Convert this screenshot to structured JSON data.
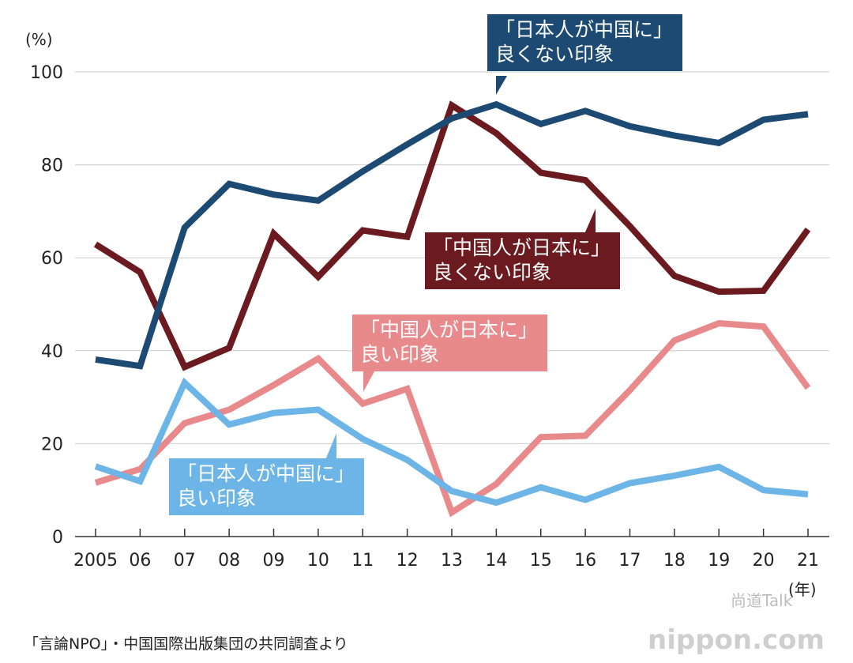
{
  "chart_data": {
    "type": "line",
    "y_unit": "(%)",
    "x_unit": "(年)",
    "ylim": [
      0,
      100
    ],
    "yticks": [
      0,
      20,
      40,
      60,
      80,
      100
    ],
    "grid": true,
    "categories": [
      "2005",
      "06",
      "07",
      "08",
      "09",
      "10",
      "11",
      "12",
      "13",
      "14",
      "15",
      "16",
      "17",
      "18",
      "19",
      "20",
      "21"
    ],
    "series": [
      {
        "name": "「日本人が中国に」\n良くない印象",
        "color": "#1c4a72",
        "values": [
          38.1,
          36.7,
          66.5,
          75.9,
          73.6,
          72.3,
          78.6,
          84.4,
          90.0,
          93.0,
          88.8,
          91.6,
          88.3,
          86.3,
          84.7,
          89.7,
          90.9
        ]
      },
      {
        "name": "「中国人が日本に」\n良くない印象",
        "color": "#6b1b1f",
        "values": [
          62.9,
          56.9,
          36.5,
          40.6,
          65.2,
          55.9,
          65.9,
          64.5,
          92.8,
          86.8,
          78.3,
          76.7,
          66.8,
          56.1,
          52.7,
          52.9,
          66.1
        ]
      },
      {
        "name": "「中国人が日本に」\n良い印象",
        "color": "#e8898b",
        "values": [
          11.6,
          14.5,
          24.4,
          27.3,
          32.6,
          38.3,
          28.6,
          31.8,
          5.2,
          11.3,
          21.4,
          21.7,
          31.5,
          42.2,
          45.9,
          45.2,
          32.0
        ]
      },
      {
        "name": "「日本人が中国に」\n良い印象",
        "color": "#6db5e6",
        "values": [
          15.1,
          11.9,
          33.1,
          24.1,
          26.6,
          27.3,
          21.0,
          16.5,
          9.8,
          7.3,
          10.6,
          7.9,
          11.5,
          13.1,
          15.0,
          10.0,
          9.1
        ]
      }
    ]
  },
  "source": "「言論NPO」・中国国際出版集団の共同調査より",
  "watermark": {
    "brand": "nippon.com",
    "account": "尚道Talk"
  }
}
